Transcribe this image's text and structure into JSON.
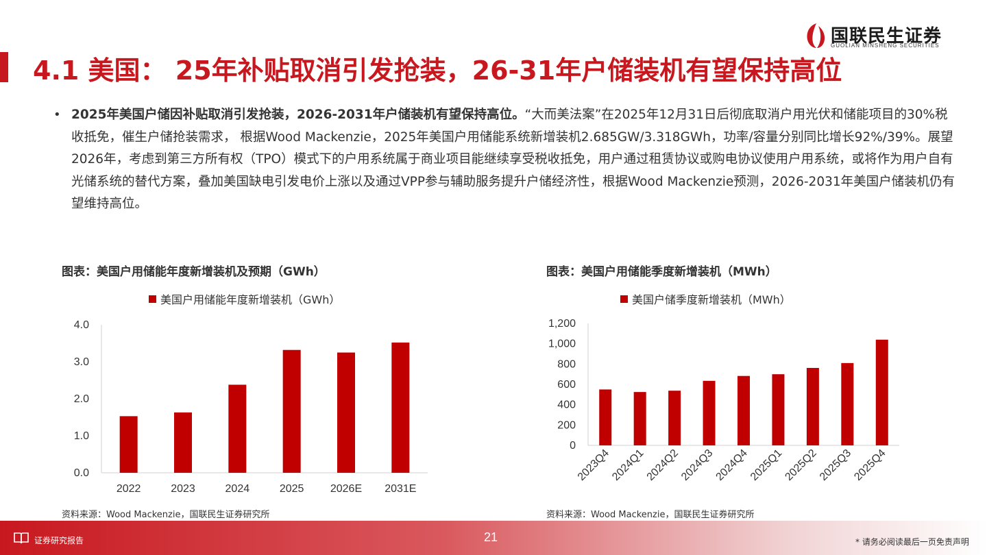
{
  "header": {
    "title": "4.1 美国： 25年补贴取消引发抢装，26-31年户储装机有望保持高位",
    "logo_name": "国联民生证券",
    "logo_sub": "GUOLIAN MINSHENG SECURITIES"
  },
  "body": {
    "bullet": "•",
    "bold_lead": "2025年美国户储因补贴取消引发抢装，2026-2031年户储装机有望保持高位。",
    "text": "“大而美法案”在2025年12月31日后彻底取消户用光伏和储能项目的30%税收抵免，催生户储抢装需求， 根据Wood Mackenzie，2025年美国户用储能系统新增装机2.685GW/3.318GWh，功率/容量分别同比增长92%/39%。展望2026年，考虑到第三方所有权（TPO）模式下的户用系统属于商业项目能继续享受税收抵免，用户通过租赁协议或购电协议使用户用系统，或将作为用户自有光储系统的替代方案，叠加美国缺电引发电价上涨以及通过VPP参与辅助服务提升户储经济性，根据Wood Mackenzie预测，2026-2031年美国户储装机仍有望维持高位。"
  },
  "charts": {
    "left": {
      "heading": "图表：美国户用储能年度新增装机及预期（GWh）",
      "source": "资料来源：Wood Mackenzie，国联民生证券研究所"
    },
    "right": {
      "heading": "图表：美国户用储能季度新增装机（MWh）",
      "source": "资料来源：Wood Mackenzie，国联民生证券研究所"
    }
  },
  "chart_data": [
    {
      "type": "bar",
      "categories": [
        "2022",
        "2023",
        "2024",
        "2025",
        "2026E",
        "2031E"
      ],
      "series": [
        {
          "name": "美国户用储能年度新增装机（GWh）",
          "values": [
            1.53,
            1.63,
            2.38,
            3.32,
            3.25,
            3.52
          ]
        }
      ],
      "ylim": [
        0,
        4
      ],
      "yticks": [
        "0.0",
        "1.0",
        "2.0",
        "3.0",
        "4.0"
      ],
      "color": "#c00000",
      "legend": "top-center"
    },
    {
      "type": "bar",
      "categories": [
        "2023Q4",
        "2024Q1",
        "2024Q2",
        "2024Q3",
        "2024Q4",
        "2025Q1",
        "2025Q2",
        "2025Q3",
        "2025Q4"
      ],
      "series": [
        {
          "name": "美国户储季度新增装机（MWh）",
          "values": [
            550,
            525,
            538,
            635,
            683,
            700,
            762,
            810,
            1040
          ]
        }
      ],
      "ylim": [
        0,
        1200
      ],
      "yticks": [
        "0",
        "200",
        "400",
        "600",
        "800",
        "1,000",
        "1,200"
      ],
      "color": "#c00000",
      "legend": "top-center"
    }
  ],
  "footer": {
    "label": "证券研究报告",
    "page": "21",
    "disclaimer": "* 请务必阅读最后一页免责声明"
  }
}
